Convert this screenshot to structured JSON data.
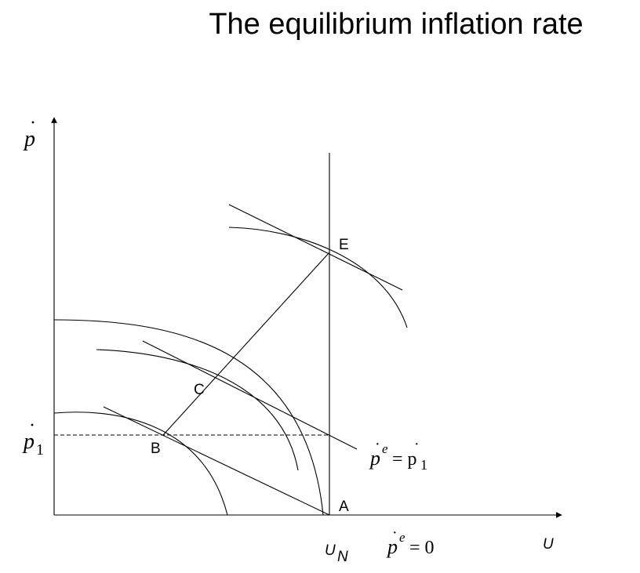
{
  "title": "The equilibrium inflation rate",
  "axes": {
    "y_label": "p",
    "x_label": "U"
  },
  "labels": {
    "p1": "p",
    "p1_sub": "1",
    "un": "U",
    "un_sub": "N"
  },
  "points": {
    "A": "A",
    "B": "B",
    "C": "C",
    "E": "E"
  },
  "curve_labels": {
    "pe_p1": {
      "lhs": "p",
      "sup": "e",
      "eq": "= p",
      "sub": "1"
    },
    "pe_0": {
      "lhs": "p",
      "sup": "e",
      "eq": "= 0"
    }
  }
}
